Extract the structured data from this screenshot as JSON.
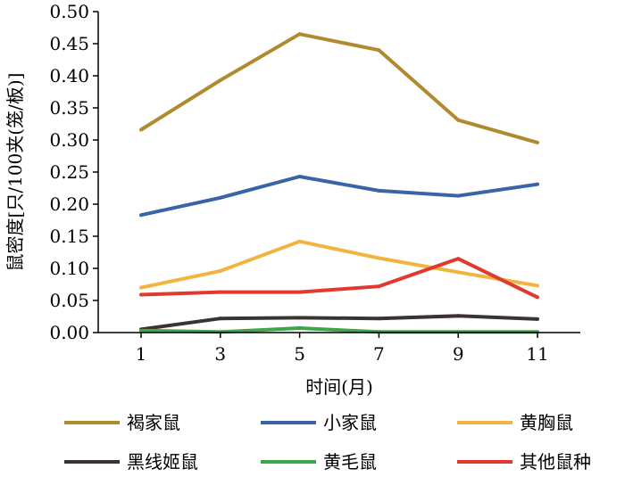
{
  "chart_data": {
    "type": "line",
    "title": "",
    "xlabel": "时间(月)",
    "ylabel": "鼠密度[只/100夹(笼/板)]",
    "x": [
      1,
      3,
      5,
      7,
      9,
      11
    ],
    "x_tick_labels": [
      "1",
      "3",
      "5",
      "7",
      "9",
      "11"
    ],
    "ylim": [
      0,
      0.5
    ],
    "y_ticks": [
      0,
      0.05,
      0.1,
      0.15,
      0.2,
      0.25,
      0.3,
      0.35,
      0.4,
      0.45,
      0.5
    ],
    "y_tick_labels": [
      "0.00",
      "0.05",
      "0.10",
      "0.15",
      "0.20",
      "0.25",
      "0.30",
      "0.35",
      "0.40",
      "0.45",
      "0.50"
    ],
    "grid": false,
    "legend_position": "bottom",
    "series": [
      {
        "name": "褐家鼠",
        "color": "#B08A2E",
        "values": [
          0.316,
          0.393,
          0.465,
          0.44,
          0.331,
          0.296
        ]
      },
      {
        "name": "小家鼠",
        "color": "#3A64A8",
        "values": [
          0.183,
          0.21,
          0.243,
          0.221,
          0.213,
          0.231
        ]
      },
      {
        "name": "黄胸鼠",
        "color": "#F2B441",
        "values": [
          0.07,
          0.096,
          0.142,
          0.116,
          0.094,
          0.073
        ]
      },
      {
        "name": "黑线姬鼠",
        "color": "#3A3330",
        "values": [
          0.005,
          0.022,
          0.023,
          0.022,
          0.026,
          0.021
        ]
      },
      {
        "name": "黄毛鼠",
        "color": "#3EA548",
        "values": [
          0.003,
          0.001,
          0.007,
          0.001,
          0.001,
          0.001
        ]
      },
      {
        "name": "其他鼠种",
        "color": "#E03A2F",
        "values": [
          0.059,
          0.063,
          0.063,
          0.072,
          0.115,
          0.055
        ]
      }
    ]
  }
}
